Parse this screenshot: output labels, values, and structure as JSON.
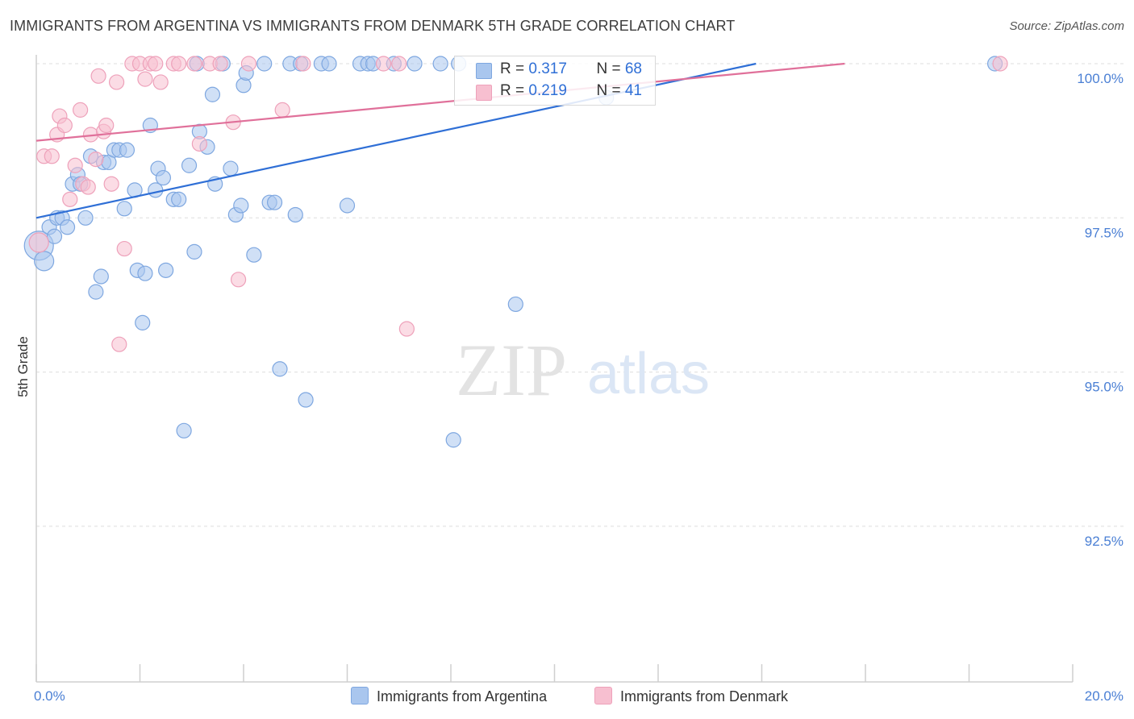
{
  "title": "IMMIGRANTS FROM ARGENTINA VS IMMIGRANTS FROM DENMARK 5TH GRADE CORRELATION CHART",
  "source": "Source: ZipAtlas.com",
  "watermark": {
    "zip": "ZIP",
    "atlas": "atlas"
  },
  "legend_stats": [
    {
      "r_label": "R = ",
      "r_value": "0.317",
      "n_label": "N = ",
      "n_value": "68"
    },
    {
      "r_label": "R = ",
      "r_value": "0.219",
      "n_label": "N = ",
      "n_value": "41"
    }
  ],
  "colors": {
    "blue_fill": "#a9c6ee",
    "blue_stroke": "#7ea7e0",
    "blue_line": "#2f6fd6",
    "pink_fill": "#f7bfd0",
    "pink_stroke": "#eea1ba",
    "pink_line": "#e0709a",
    "grid": "#dddddd",
    "axis_text": "#4a7fd4"
  },
  "chart_data": {
    "type": "scatter",
    "title": "IMMIGRANTS FROM ARGENTINA VS IMMIGRANTS FROM DENMARK 5TH GRADE CORRELATION CHART",
    "xlabel": "",
    "ylabel": "5th Grade",
    "xlim": [
      0,
      20
    ],
    "ylim": [
      90.2,
      100.2
    ],
    "x_tick_labels": [
      "0.0%",
      "20.0%"
    ],
    "y_ticks": [
      100.0,
      97.5,
      95.0,
      92.5
    ],
    "y_tick_labels": [
      "100.0%",
      "97.5%",
      "95.0%",
      "92.5%"
    ],
    "grid": true,
    "series": [
      {
        "name": "Immigrants from Argentina",
        "color": "#a9c6ee",
        "r": 0.317,
        "n": 68,
        "trend": {
          "x0": 0,
          "y0": 97.5,
          "x1": 20,
          "y1": 101.1
        },
        "points": [
          [
            0.05,
            97.05,
            18
          ],
          [
            0.15,
            96.8,
            12
          ],
          [
            0.25,
            97.35,
            9
          ],
          [
            0.35,
            97.2,
            9
          ],
          [
            0.4,
            97.5,
            9
          ],
          [
            0.5,
            97.5,
            9
          ],
          [
            0.6,
            97.35,
            9
          ],
          [
            0.7,
            98.05,
            9
          ],
          [
            0.8,
            98.2,
            9
          ],
          [
            0.85,
            98.05,
            9
          ],
          [
            0.95,
            97.5,
            9
          ],
          [
            1.05,
            98.5,
            9
          ],
          [
            1.25,
            96.55,
            9
          ],
          [
            1.15,
            96.3,
            9
          ],
          [
            1.3,
            98.4,
            9
          ],
          [
            1.4,
            98.4,
            9
          ],
          [
            1.5,
            98.6,
            9
          ],
          [
            1.6,
            98.6,
            9
          ],
          [
            1.7,
            97.65,
            9
          ],
          [
            1.75,
            98.6,
            9
          ],
          [
            1.9,
            97.95,
            9
          ],
          [
            1.95,
            96.65,
            9
          ],
          [
            2.05,
            95.8,
            9
          ],
          [
            2.1,
            96.6,
            9
          ],
          [
            2.2,
            99.0,
            9
          ],
          [
            2.3,
            97.95,
            9
          ],
          [
            2.35,
            98.3,
            9
          ],
          [
            2.45,
            98.15,
            9
          ],
          [
            2.5,
            96.65,
            9
          ],
          [
            2.65,
            97.8,
            9
          ],
          [
            2.75,
            97.8,
            9
          ],
          [
            2.85,
            94.05,
            9
          ],
          [
            2.95,
            98.35,
            9
          ],
          [
            3.05,
            96.95,
            9
          ],
          [
            3.1,
            100.0,
            9
          ],
          [
            3.15,
            98.9,
            9
          ],
          [
            3.3,
            98.65,
            9
          ],
          [
            3.4,
            99.5,
            9
          ],
          [
            3.45,
            98.05,
            9
          ],
          [
            3.6,
            100.0,
            9
          ],
          [
            3.75,
            98.3,
            9
          ],
          [
            3.85,
            97.55,
            9
          ],
          [
            3.95,
            97.7,
            9
          ],
          [
            4.0,
            99.65,
            9
          ],
          [
            4.05,
            99.85,
            9
          ],
          [
            4.2,
            96.9,
            9
          ],
          [
            4.4,
            100.0,
            9
          ],
          [
            4.5,
            97.75,
            9
          ],
          [
            4.6,
            97.75,
            9
          ],
          [
            4.7,
            95.05,
            9
          ],
          [
            4.9,
            100.0,
            9
          ],
          [
            5.0,
            97.55,
            9
          ],
          [
            5.1,
            100.0,
            9
          ],
          [
            5.2,
            94.55,
            9
          ],
          [
            5.5,
            100.0,
            9
          ],
          [
            5.65,
            100.0,
            9
          ],
          [
            6.0,
            97.7,
            9
          ],
          [
            6.25,
            100.0,
            9
          ],
          [
            6.4,
            100.0,
            9
          ],
          [
            6.5,
            100.0,
            9
          ],
          [
            6.9,
            100.0,
            9
          ],
          [
            7.3,
            100.0,
            9
          ],
          [
            7.8,
            100.0,
            9
          ],
          [
            8.05,
            93.9,
            9
          ],
          [
            8.15,
            100.0,
            9
          ],
          [
            9.25,
            96.1,
            9
          ],
          [
            11.0,
            99.45,
            9
          ],
          [
            18.5,
            100.0,
            9
          ]
        ]
      },
      {
        "name": "Immigrants from Denmark",
        "color": "#f7bfd0",
        "r": 0.219,
        "n": 41,
        "trend": {
          "x0": 0,
          "y0": 98.75,
          "x1": 15.6,
          "y1": 100.0
        },
        "points": [
          [
            0.05,
            97.1,
            12
          ],
          [
            0.15,
            98.5,
            9
          ],
          [
            0.3,
            98.5,
            9
          ],
          [
            0.4,
            98.85,
            9
          ],
          [
            0.45,
            99.15,
            9
          ],
          [
            0.55,
            99.0,
            9
          ],
          [
            0.65,
            97.8,
            9
          ],
          [
            0.75,
            98.35,
            9
          ],
          [
            0.85,
            99.25,
            9
          ],
          [
            0.9,
            98.05,
            9
          ],
          [
            1.0,
            98.0,
            9
          ],
          [
            1.05,
            98.85,
            9
          ],
          [
            1.15,
            98.45,
            9
          ],
          [
            1.2,
            99.8,
            9
          ],
          [
            1.3,
            98.9,
            9
          ],
          [
            1.35,
            99.0,
            9
          ],
          [
            1.45,
            98.05,
            9
          ],
          [
            1.55,
            99.7,
            9
          ],
          [
            1.6,
            95.45,
            9
          ],
          [
            1.7,
            97.0,
            9
          ],
          [
            1.85,
            100.0,
            9
          ],
          [
            2.0,
            100.0,
            9
          ],
          [
            2.1,
            99.75,
            9
          ],
          [
            2.2,
            100.0,
            9
          ],
          [
            2.3,
            100.0,
            9
          ],
          [
            2.4,
            99.7,
            9
          ],
          [
            2.65,
            100.0,
            9
          ],
          [
            2.75,
            100.0,
            9
          ],
          [
            3.05,
            100.0,
            9
          ],
          [
            3.15,
            98.7,
            9
          ],
          [
            3.35,
            100.0,
            9
          ],
          [
            3.55,
            100.0,
            9
          ],
          [
            3.8,
            99.05,
            9
          ],
          [
            3.9,
            96.5,
            9
          ],
          [
            4.1,
            100.0,
            9
          ],
          [
            4.75,
            99.25,
            9
          ],
          [
            5.15,
            100.0,
            9
          ],
          [
            6.7,
            100.0,
            9
          ],
          [
            7.0,
            100.0,
            9
          ],
          [
            7.15,
            95.7,
            9
          ],
          [
            18.6,
            100.0,
            9
          ]
        ]
      }
    ]
  }
}
